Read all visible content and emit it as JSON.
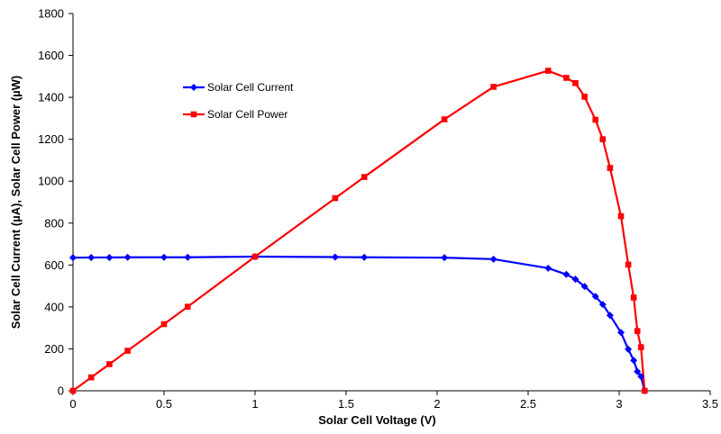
{
  "chart_data": {
    "type": "line",
    "title": "",
    "xlabel": "Solar Cell Voltage (V)",
    "ylabel": "Solar Cell Current (µA), Solar Cell Power (µW)",
    "xlim": [
      0,
      3.5
    ],
    "ylim": [
      0,
      1800
    ],
    "x_ticks": [
      "0",
      "0.5",
      "1",
      "1.5",
      "2",
      "2.5",
      "3",
      "3.5"
    ],
    "y_ticks": [
      "0",
      "200",
      "400",
      "600",
      "800",
      "1000",
      "1200",
      "1400",
      "1600",
      "1800"
    ],
    "grid": false,
    "legend_position": "upper-left",
    "series": [
      {
        "name": "Solar Cell Current",
        "color": "#0000ff",
        "marker": "diamond",
        "x": [
          0,
          0.1,
          0.2,
          0.3,
          0.5,
          0.63,
          1.0,
          1.44,
          1.6,
          2.04,
          2.31,
          2.61,
          2.71,
          2.76,
          2.81,
          2.87,
          2.91,
          2.95,
          3.01,
          3.05,
          3.08,
          3.1,
          3.12,
          3.14
        ],
        "y": [
          635,
          636,
          636,
          637,
          637,
          637,
          640,
          638,
          637,
          635,
          628,
          585,
          555,
          532,
          498,
          450,
          412,
          360,
          278,
          198,
          145,
          92,
          68,
          0
        ]
      },
      {
        "name": "Solar Cell Power",
        "color": "#ff0000",
        "marker": "square",
        "x": [
          0,
          0.1,
          0.2,
          0.3,
          0.5,
          0.63,
          1.0,
          1.44,
          1.6,
          2.04,
          2.31,
          2.61,
          2.71,
          2.76,
          2.81,
          2.87,
          2.91,
          2.95,
          3.01,
          3.05,
          3.08,
          3.1,
          3.12,
          3.14
        ],
        "y": [
          0,
          64,
          127,
          191,
          318,
          401,
          640,
          919,
          1020,
          1295,
          1450,
          1527,
          1493,
          1468,
          1403,
          1293,
          1200,
          1063,
          833,
          602,
          445,
          285,
          208,
          0
        ]
      }
    ]
  }
}
